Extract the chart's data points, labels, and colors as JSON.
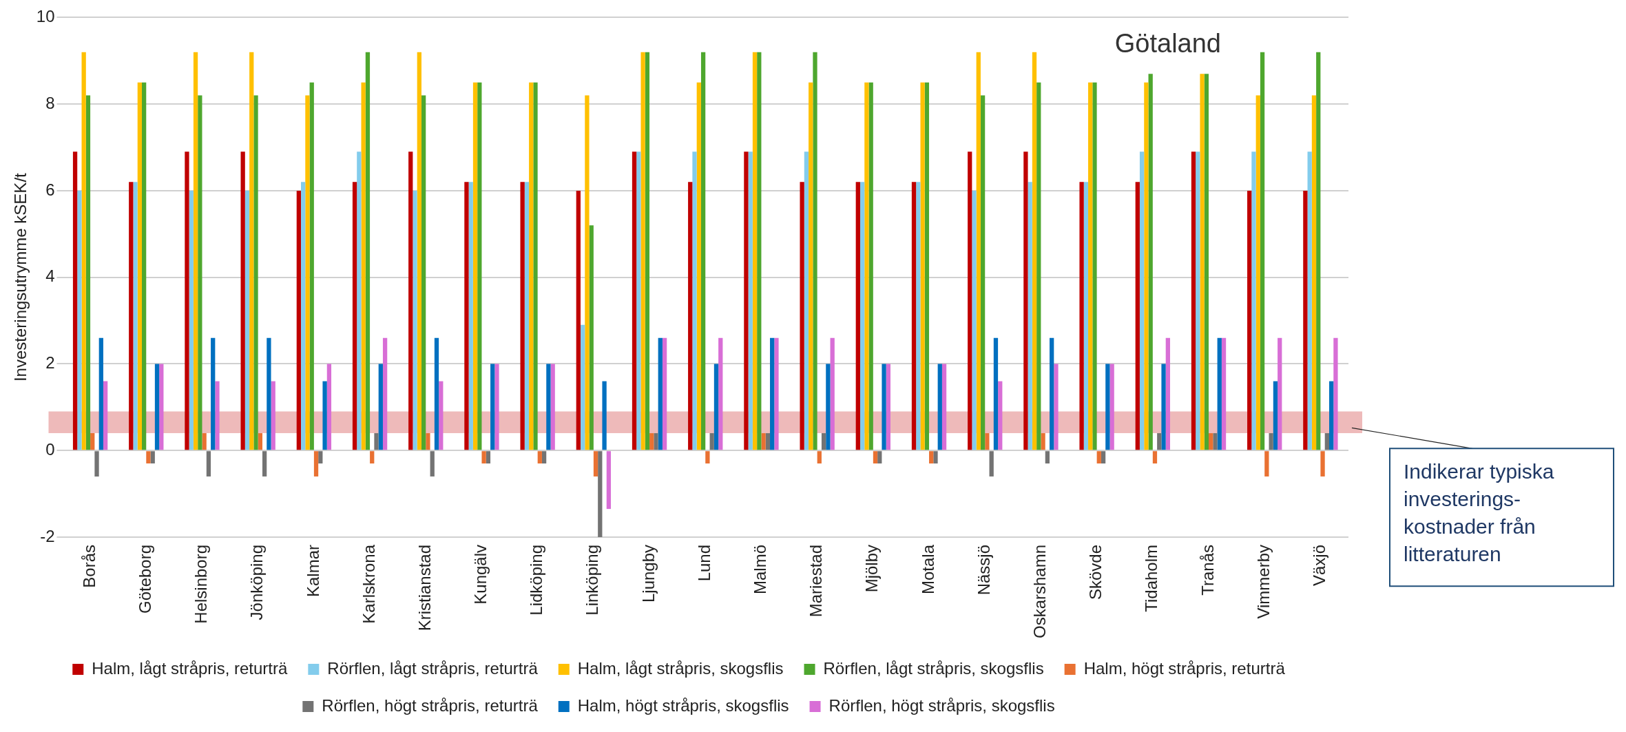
{
  "chart_data": {
    "type": "bar",
    "title": "Götaland",
    "ylabel": "Investeringsutrymme kSEK/t",
    "categories": [
      "Borås",
      "Göteborg",
      "Helsinborg",
      "Jönköping",
      "Kalmar",
      "Karlskrona",
      "Kristianstad",
      "Kungälv",
      "Lidköping",
      "Linköping",
      "Ljungby",
      "Lund",
      "Malmö",
      "Mariestad",
      "Mjölby",
      "Motala",
      "Nässjö",
      "Oskarshamn",
      "Skövde",
      "Tidaholm",
      "Tranås",
      "Vimmerby",
      "Växjö"
    ],
    "series": [
      {
        "name": "Halm, lågt stråpris, returträ",
        "color": "#c00000",
        "values": [
          6.9,
          6.2,
          6.9,
          6.9,
          6.0,
          6.2,
          6.9,
          6.2,
          6.2,
          6.0,
          6.9,
          6.2,
          6.9,
          6.2,
          6.2,
          6.2,
          6.9,
          6.9,
          6.2,
          6.2,
          6.9,
          6.0,
          6.0
        ]
      },
      {
        "name": "Rörflen, lågt stråpris, returträ",
        "color": "#83ccec",
        "values": [
          6.0,
          6.2,
          6.0,
          6.0,
          6.2,
          6.9,
          6.0,
          6.2,
          6.2,
          2.9,
          6.9,
          6.9,
          6.9,
          6.9,
          6.2,
          6.2,
          6.0,
          6.2,
          6.2,
          6.9,
          6.9,
          6.9,
          6.9
        ]
      },
      {
        "name": "Halm, lågt stråpris, skogsflis",
        "color": "#ffc000",
        "values": [
          9.2,
          8.5,
          9.2,
          9.2,
          8.2,
          8.5,
          9.2,
          8.5,
          8.5,
          8.2,
          9.2,
          8.5,
          9.2,
          8.5,
          8.5,
          8.5,
          9.2,
          9.2,
          8.5,
          8.5,
          8.7,
          8.2,
          8.2
        ]
      },
      {
        "name": "Rörflen, lågt stråpris, skogsflis",
        "color": "#4ea72e",
        "values": [
          8.2,
          8.5,
          8.2,
          8.2,
          8.5,
          9.2,
          8.2,
          8.5,
          8.5,
          5.2,
          9.2,
          9.2,
          9.2,
          9.2,
          8.5,
          8.5,
          8.2,
          8.5,
          8.5,
          8.7,
          8.7,
          9.2,
          9.2
        ]
      },
      {
        "name": "Halm, högt stråpris, returträ",
        "color": "#e97132",
        "values": [
          0.4,
          -0.3,
          0.4,
          0.4,
          -0.6,
          -0.3,
          0.4,
          -0.3,
          -0.3,
          -0.6,
          0.4,
          -0.3,
          0.4,
          -0.3,
          -0.3,
          -0.3,
          0.4,
          0.4,
          -0.3,
          -0.3,
          0.4,
          -0.6,
          -0.6
        ]
      },
      {
        "name": "Rörflen, högt stråpris, returträ",
        "color": "#737373",
        "values": [
          -0.6,
          -0.3,
          -0.6,
          -0.6,
          -0.3,
          0.4,
          -0.6,
          -0.3,
          -0.3,
          -2.0,
          0.4,
          0.4,
          0.4,
          0.4,
          -0.3,
          -0.3,
          -0.6,
          -0.3,
          -0.3,
          0.4,
          0.4,
          0.4,
          0.4
        ]
      },
      {
        "name": "Halm, högt stråpris, skogsflis",
        "color": "#0070c0",
        "values": [
          2.6,
          2.0,
          2.6,
          2.6,
          1.6,
          2.0,
          2.6,
          2.0,
          2.0,
          1.6,
          2.6,
          2.0,
          2.6,
          2.0,
          2.0,
          2.0,
          2.6,
          2.6,
          2.0,
          2.0,
          2.6,
          1.6,
          1.6
        ]
      },
      {
        "name": "Rörflen, högt stråpris, skogsflis",
        "color": "#d86ed6",
        "values": [
          1.6,
          2.0,
          1.6,
          1.6,
          2.0,
          2.6,
          1.6,
          2.0,
          2.0,
          -1.35,
          2.6,
          2.6,
          2.6,
          2.6,
          2.0,
          2.0,
          1.6,
          2.0,
          2.0,
          2.6,
          2.6,
          2.6,
          2.6
        ]
      }
    ],
    "ylim": [
      -2,
      10
    ],
    "yticks": [
      -2,
      0,
      2,
      4,
      6,
      8,
      10
    ],
    "grid": "y",
    "legend": "bottom",
    "bands": [
      {
        "axis": "y",
        "from": 0.4,
        "to": 0.9,
        "label": "Indikerar typiska investerings-kostnader från litteraturen",
        "color": "#e8a3a3"
      }
    ]
  }
}
